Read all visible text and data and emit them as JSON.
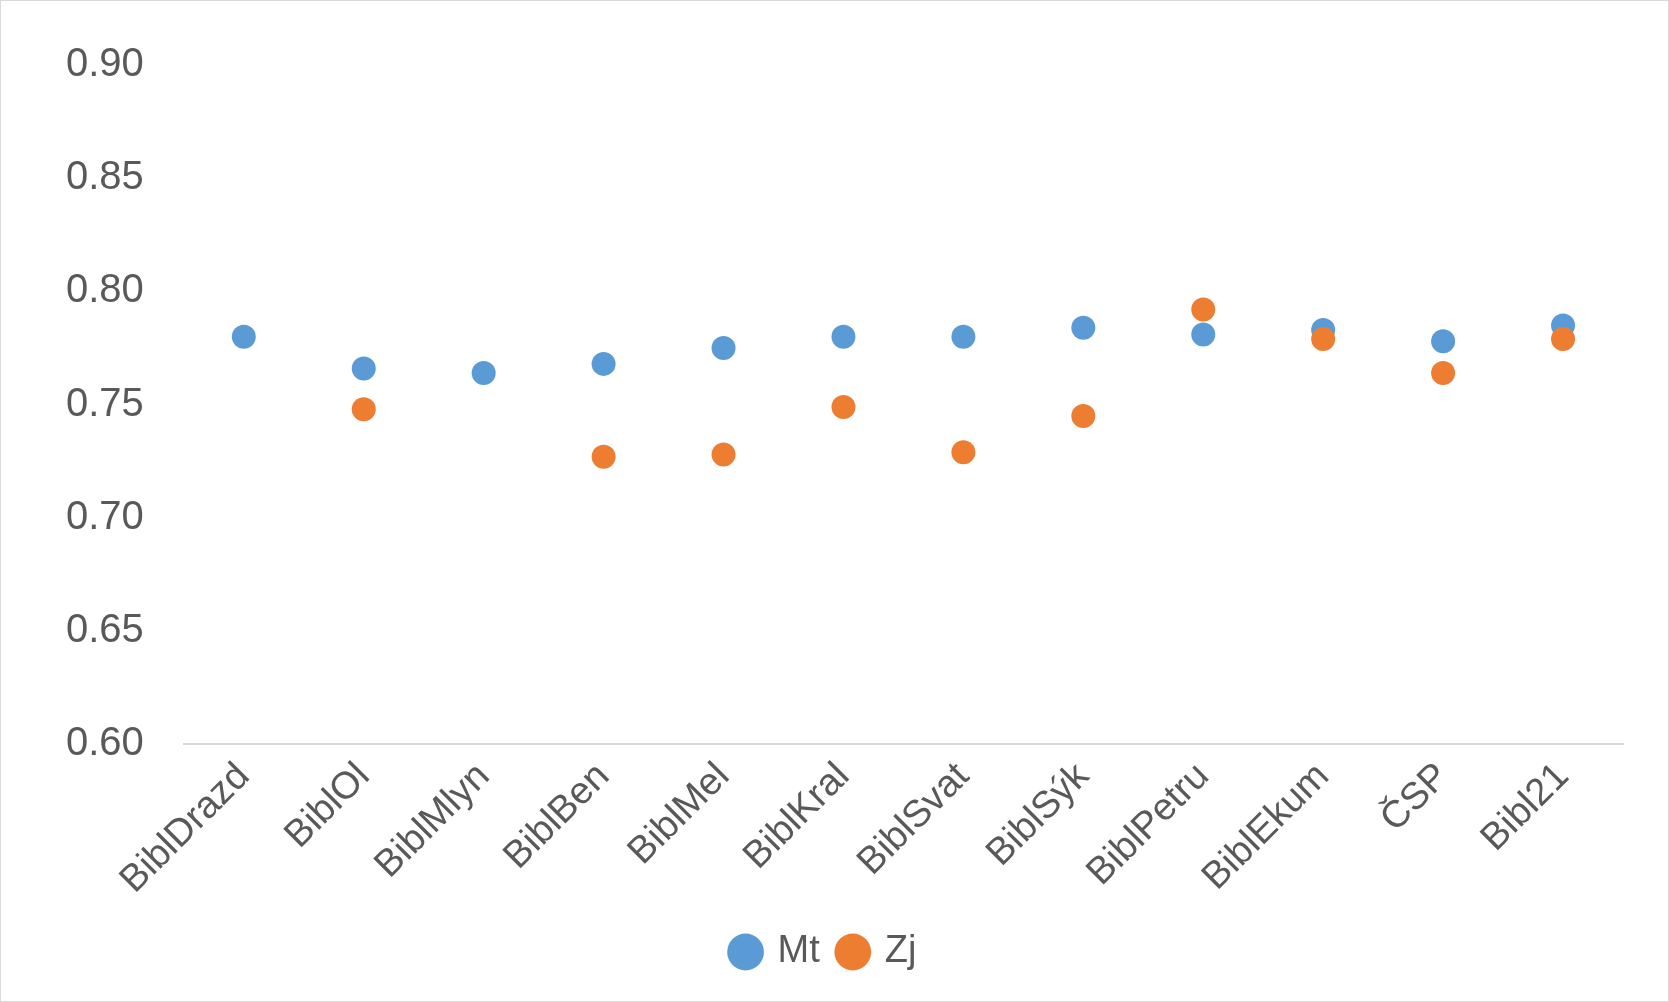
{
  "chart_data": {
    "type": "scatter",
    "categories": [
      "BiblDrazd",
      "BiblOl",
      "BiblMlyn",
      "BiblBen",
      "BiblMel",
      "BiblKral",
      "BiblSvat",
      "BiblSýk",
      "BiblPetru",
      "BiblEkum",
      "ČSP",
      "Bibl21"
    ],
    "series": [
      {
        "name": "Mt",
        "color": "#5b9bd5",
        "values": [
          0.78,
          0.766,
          0.764,
          0.768,
          0.775,
          0.78,
          0.78,
          0.784,
          0.781,
          0.783,
          0.778,
          0.785
        ]
      },
      {
        "name": "Zj",
        "color": "#ed7d31",
        "values": [
          null,
          0.748,
          null,
          0.727,
          0.728,
          0.749,
          0.729,
          0.745,
          0.792,
          0.779,
          0.764,
          0.779
        ]
      }
    ],
    "ylim": [
      0.6,
      0.9
    ],
    "yticks": [
      {
        "value": 0.6,
        "label": "0.60"
      },
      {
        "value": 0.65,
        "label": "0.65"
      },
      {
        "value": 0.7,
        "label": "0.70"
      },
      {
        "value": 0.75,
        "label": "0.75"
      },
      {
        "value": 0.8,
        "label": "0.80"
      },
      {
        "value": 0.85,
        "label": "0.85"
      },
      {
        "value": 0.9,
        "label": "0.90"
      }
    ],
    "grid": false,
    "legend": "bottom",
    "marker": "circle"
  }
}
